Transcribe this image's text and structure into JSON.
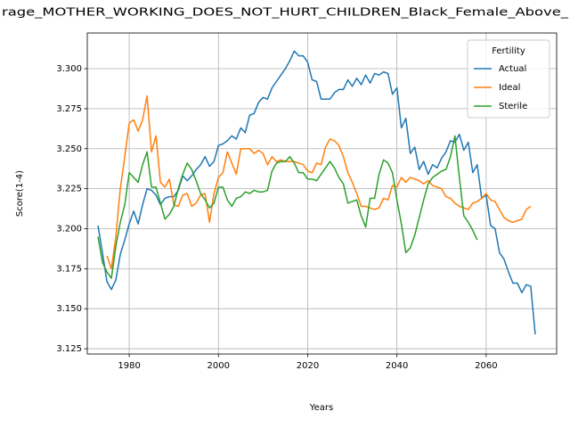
{
  "chart_data": {
    "type": "line",
    "title": "rage_MOTHER_WORKING_DOES_NOT_HURT_CHILDREN_Black_Female_Above_",
    "x_label": "Years",
    "y_label": "Score(1-4)",
    "legend_title": "Fertility",
    "legend_loc": "upper right",
    "grid": true,
    "xlim": [
      1970.6,
      2075.8
    ],
    "xticks": [
      1980,
      2000,
      2020,
      2040,
      2060
    ],
    "ylim": [
      3.1217,
      3.3223
    ],
    "yticks": [
      3.125,
      {
        "value": 3.15,
        "label": "3.150"
      },
      3.175,
      {
        "value": 3.2,
        "label": "3.200"
      },
      3.225,
      {
        "value": 3.25,
        "label": "3.250"
      },
      3.275,
      {
        "value": 3.3,
        "label": "3.300"
      }
    ],
    "x": [
      1973,
      1974,
      1975,
      1976,
      1977,
      1978,
      1979,
      1980,
      1981,
      1982,
      1983,
      1984,
      1985,
      1986,
      1987,
      1988,
      1989,
      1990,
      1991,
      1992,
      1993,
      1994,
      1995,
      1996,
      1997,
      1998,
      1999,
      2000,
      2001,
      2002,
      2003,
      2004,
      2005,
      2006,
      2007,
      2008,
      2009,
      2010,
      2011,
      2012,
      2013,
      2014,
      2015,
      2016,
      2017,
      2018,
      2019,
      2020,
      2021,
      2022,
      2023,
      2024,
      2025,
      2026,
      2027,
      2028,
      2029,
      2030,
      2031,
      2032,
      2033,
      2034,
      2035,
      2036,
      2037,
      2038,
      2039,
      2040,
      2041,
      2042,
      2043,
      2044,
      2045,
      2046,
      2047,
      2048,
      2049,
      2050,
      2051,
      2052,
      2053,
      2054,
      2055,
      2056,
      2057,
      2058,
      2059,
      2060,
      2061,
      2062,
      2063,
      2064,
      2065,
      2066,
      2067,
      2068,
      2069,
      2070,
      2071
    ],
    "series": [
      {
        "name": "Actual",
        "color": "#1f77b4",
        "values": [
          3.202,
          3.185,
          3.167,
          3.162,
          3.168,
          3.184,
          3.193,
          3.203,
          3.211,
          3.203,
          3.215,
          3.225,
          3.224,
          3.221,
          3.215,
          3.219,
          3.22,
          3.22,
          3.224,
          3.233,
          3.23,
          3.233,
          3.237,
          3.24,
          3.245,
          3.239,
          3.242,
          3.252,
          3.253,
          3.255,
          3.258,
          3.256,
          3.263,
          3.26,
          3.271,
          3.272,
          3.279,
          3.282,
          3.281,
          3.288,
          3.292,
          3.296,
          3.3,
          3.305,
          3.311,
          3.308,
          3.308,
          3.304,
          3.293,
          3.292,
          3.281,
          3.281,
          3.281,
          3.285,
          3.287,
          3.287,
          3.293,
          3.289,
          3.294,
          3.29,
          3.296,
          3.291,
          3.297,
          3.296,
          3.298,
          3.297,
          3.284,
          3.288,
          3.263,
          3.269,
          3.247,
          3.251,
          3.237,
          3.242,
          3.234,
          3.24,
          3.238,
          3.244,
          3.248,
          3.255,
          3.254,
          3.259,
          3.249,
          3.254,
          3.235,
          3.24,
          3.219,
          3.221,
          3.202,
          3.2,
          3.185,
          3.181,
          3.173,
          3.166,
          3.166,
          3.16,
          3.165,
          3.164,
          3.134
        ]
      },
      {
        "name": "Ideal",
        "color": "#ff7f0e",
        "values": [
          null,
          null,
          3.183,
          3.175,
          3.195,
          3.225,
          3.245,
          3.266,
          3.268,
          3.261,
          3.268,
          3.283,
          3.248,
          3.258,
          3.229,
          3.226,
          3.231,
          3.215,
          3.214,
          3.221,
          3.222,
          3.214,
          3.216,
          3.221,
          3.222,
          3.204,
          3.222,
          3.232,
          3.235,
          3.248,
          3.241,
          3.234,
          3.25,
          3.25,
          3.25,
          3.247,
          3.249,
          3.247,
          3.24,
          3.245,
          3.242,
          3.243,
          3.242,
          3.242,
          3.242,
          3.241,
          3.24,
          3.236,
          3.235,
          3.241,
          3.24,
          3.251,
          3.256,
          3.255,
          3.252,
          3.245,
          3.235,
          3.229,
          3.222,
          3.214,
          3.214,
          3.213,
          3.212,
          3.213,
          3.219,
          3.218,
          3.227,
          3.226,
          3.232,
          3.229,
          3.232,
          3.231,
          3.23,
          3.228,
          3.23,
          3.227,
          3.226,
          3.225,
          3.22,
          3.219,
          3.216,
          3.214,
          3.213,
          3.212,
          3.216,
          3.217,
          3.219,
          3.222,
          3.218,
          3.217,
          3.212,
          3.207,
          3.205,
          3.204,
          3.205,
          3.206,
          3.212,
          3.214,
          null
        ]
      },
      {
        "name": "Sterile",
        "color": "#2ca02c",
        "values": [
          3.195,
          3.179,
          3.173,
          3.169,
          3.189,
          3.204,
          3.215,
          3.235,
          3.232,
          3.229,
          3.24,
          3.248,
          3.226,
          3.226,
          3.216,
          3.206,
          3.209,
          3.214,
          3.225,
          3.234,
          3.241,
          3.237,
          3.23,
          3.222,
          3.218,
          3.213,
          3.216,
          3.226,
          3.226,
          3.218,
          3.214,
          3.219,
          3.22,
          3.223,
          3.222,
          3.224,
          3.223,
          3.223,
          3.224,
          3.236,
          3.241,
          3.242,
          3.242,
          3.245,
          3.241,
          3.235,
          3.235,
          3.231,
          3.231,
          3.23,
          3.234,
          3.238,
          3.242,
          3.238,
          3.232,
          3.228,
          3.216,
          3.217,
          3.218,
          3.208,
          3.201,
          3.219,
          3.219,
          3.234,
          3.243,
          3.241,
          3.235,
          3.218,
          3.203,
          3.185,
          3.188,
          3.196,
          3.207,
          3.218,
          3.228,
          3.232,
          3.234,
          3.236,
          3.237,
          3.245,
          3.258,
          3.232,
          3.208,
          3.204,
          3.199,
          3.193,
          null,
          null,
          null,
          null,
          null,
          null,
          null,
          null,
          null,
          null,
          null,
          null,
          null
        ]
      }
    ]
  }
}
